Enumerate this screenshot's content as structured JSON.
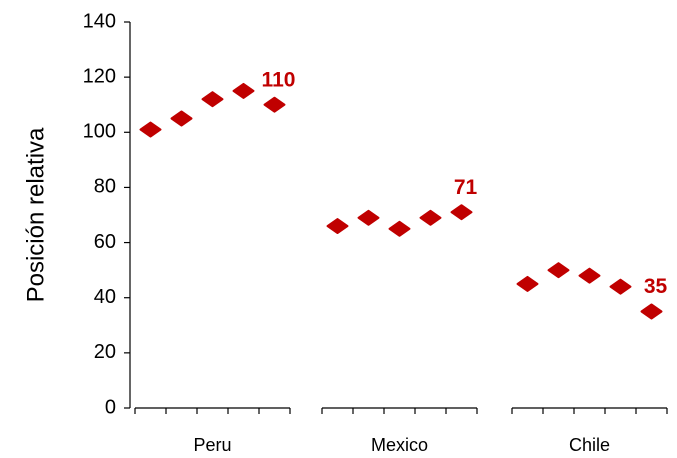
{
  "chart_data": {
    "type": "grouped-dot",
    "y_label": "Posición relativa",
    "groups": [
      {
        "name": "Peru",
        "values": [
          101,
          105,
          112,
          115,
          110
        ]
      },
      {
        "name": "Mexico",
        "values": [
          66,
          69,
          65,
          69,
          71
        ]
      },
      {
        "name": "Chile",
        "values": [
          45,
          50,
          48,
          44,
          35
        ]
      }
    ],
    "color": "#c00000",
    "ylim": [
      0,
      140
    ],
    "yticks": [
      0,
      20,
      40,
      60,
      80,
      100,
      120,
      140
    ],
    "label_last": true
  }
}
